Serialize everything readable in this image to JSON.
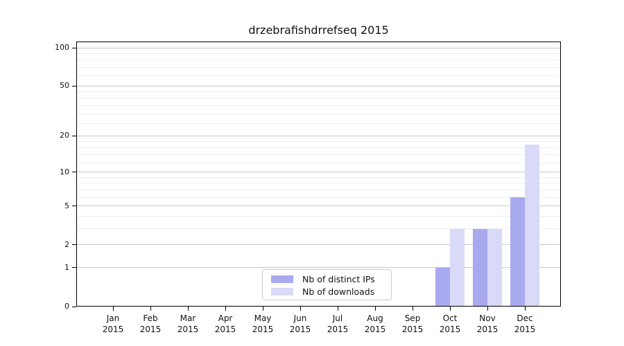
{
  "chart_data": {
    "type": "bar",
    "title": "drzebrafishdrrefseq 2015",
    "categories": [
      {
        "month": "Jan",
        "year": "2015"
      },
      {
        "month": "Feb",
        "year": "2015"
      },
      {
        "month": "Mar",
        "year": "2015"
      },
      {
        "month": "Apr",
        "year": "2015"
      },
      {
        "month": "May",
        "year": "2015"
      },
      {
        "month": "Jun",
        "year": "2015"
      },
      {
        "month": "Jul",
        "year": "2015"
      },
      {
        "month": "Aug",
        "year": "2015"
      },
      {
        "month": "Sep",
        "year": "2015"
      },
      {
        "month": "Oct",
        "year": "2015"
      },
      {
        "month": "Nov",
        "year": "2015"
      },
      {
        "month": "Dec",
        "year": "2015"
      }
    ],
    "series": [
      {
        "name": "Nb of distinct IPs",
        "color": "#a9a9f0",
        "values": [
          0,
          0,
          0,
          0,
          0,
          0,
          0,
          0,
          0,
          1,
          3,
          6
        ]
      },
      {
        "name": "Nb of downloads",
        "color": "#d9d9f8",
        "values": [
          0,
          0,
          0,
          0,
          0,
          0,
          0,
          0,
          0,
          3,
          3,
          17
        ]
      }
    ],
    "y_axis": {
      "scale": "log1p",
      "major_ticks": [
        0,
        1,
        2,
        5,
        10,
        20,
        50,
        100
      ],
      "minor_gridlines": [
        3,
        4,
        6,
        7,
        8,
        9,
        12,
        14,
        16,
        18,
        25,
        30,
        35,
        40,
        45,
        60,
        70,
        80,
        90
      ],
      "ylim": [
        0,
        112
      ]
    },
    "xlabel": "",
    "ylabel": "",
    "legend_position": "bottom-center",
    "grid": "on",
    "colors": {
      "major_grid": "#c9c9c9",
      "minor_grid": "#ededed",
      "axis": "#000000",
      "legend_border": "#cccccc",
      "background": "#ffffff"
    }
  }
}
